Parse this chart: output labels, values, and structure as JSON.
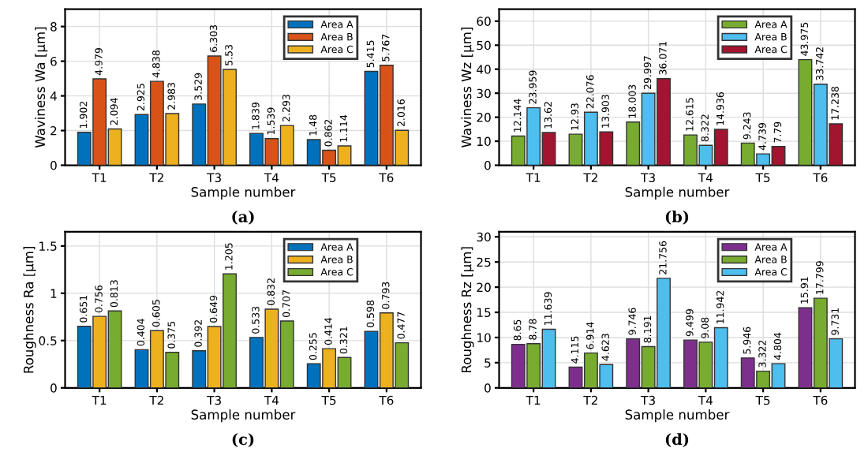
{
  "chart_data": [
    {
      "type": "bar",
      "categories": [
        "T1",
        "T2",
        "T3",
        "T4",
        "T5",
        "T6"
      ],
      "xlabel": "Sample number",
      "ylabel": "Waviness Wa [μm]",
      "ylim": [
        0,
        9
      ],
      "yticks": [
        0,
        2,
        4,
        6,
        8
      ],
      "grid": true,
      "legend": "top right",
      "data_labels": true,
      "annotations": [
        "(a)"
      ],
      "series": [
        {
          "name": "Area A",
          "color": "#0072bd",
          "values": [
            1.902,
            2.925,
            3.529,
            1.839,
            1.48,
            5.415
          ]
        },
        {
          "name": "Area B",
          "color": "#d95319",
          "values": [
            4.979,
            4.838,
            6.303,
            1.539,
            0.862,
            5.767
          ]
        },
        {
          "name": "Area C",
          "color": "#edb120",
          "values": [
            2.094,
            2.983,
            5.53,
            2.293,
            1.114,
            2.016
          ]
        }
      ]
    },
    {
      "type": "bar",
      "categories": [
        "T1",
        "T2",
        "T3",
        "T4",
        "T5",
        "T6"
      ],
      "xlabel": "Sample number",
      "ylabel": "Waviness Wz [μm]",
      "ylim": [
        0,
        65
      ],
      "yticks": [
        0,
        10,
        20,
        30,
        40,
        50,
        60
      ],
      "grid": true,
      "legend": "top right",
      "data_labels": true,
      "annotations": [
        "(b)"
      ],
      "series": [
        {
          "name": "Area A",
          "color": "#77ac30",
          "values": [
            12.144,
            12.93,
            18.003,
            12.615,
            9.243,
            43.975
          ]
        },
        {
          "name": "Area B",
          "color": "#4dbeee",
          "values": [
            23.959,
            22.076,
            29.997,
            8.322,
            4.739,
            33.742
          ]
        },
        {
          "name": "Area C",
          "color": "#a2142f",
          "values": [
            13.62,
            13.903,
            36.071,
            14.936,
            7.79,
            17.238
          ]
        }
      ]
    },
    {
      "type": "bar",
      "categories": [
        "T1",
        "T2",
        "T3",
        "T4",
        "T5",
        "T6"
      ],
      "xlabel": "Sample number",
      "ylabel": "Roughness Ra [μm]",
      "ylim": [
        0,
        1.65
      ],
      "yticks": [
        0,
        0.5,
        1,
        1.5
      ],
      "grid": true,
      "legend": "top right",
      "data_labels": true,
      "annotations": [
        "(c)"
      ],
      "series": [
        {
          "name": "Area A",
          "color": "#0072bd",
          "values": [
            0.651,
            0.404,
            0.392,
            0.533,
            0.255,
            0.598
          ]
        },
        {
          "name": "Area B",
          "color": "#edb120",
          "values": [
            0.756,
            0.605,
            0.649,
            0.832,
            0.414,
            0.793
          ]
        },
        {
          "name": "Area C",
          "color": "#77ac30",
          "values": [
            0.813,
            0.375,
            1.205,
            0.707,
            0.321,
            0.477
          ]
        }
      ]
    },
    {
      "type": "bar",
      "categories": [
        "T1",
        "T2",
        "T3",
        "T4",
        "T5",
        "T6"
      ],
      "xlabel": "Sample number",
      "ylabel": "Roughness Rz [μm]",
      "ylim": [
        0,
        31
      ],
      "yticks": [
        0,
        5,
        10,
        15,
        20,
        25,
        30
      ],
      "grid": true,
      "legend": "top right",
      "data_labels": true,
      "annotations": [
        "(d)"
      ],
      "series": [
        {
          "name": "Area A",
          "color": "#7e2f8e",
          "values": [
            8.65,
            4.115,
            9.746,
            9.499,
            5.946,
            15.91
          ]
        },
        {
          "name": "Area B",
          "color": "#77ac30",
          "values": [
            8.78,
            6.914,
            8.191,
            9.08,
            3.322,
            17.799
          ]
        },
        {
          "name": "Area C",
          "color": "#4dbeee",
          "values": [
            11.639,
            4.623,
            21.756,
            11.942,
            4.804,
            9.731
          ]
        }
      ]
    }
  ]
}
